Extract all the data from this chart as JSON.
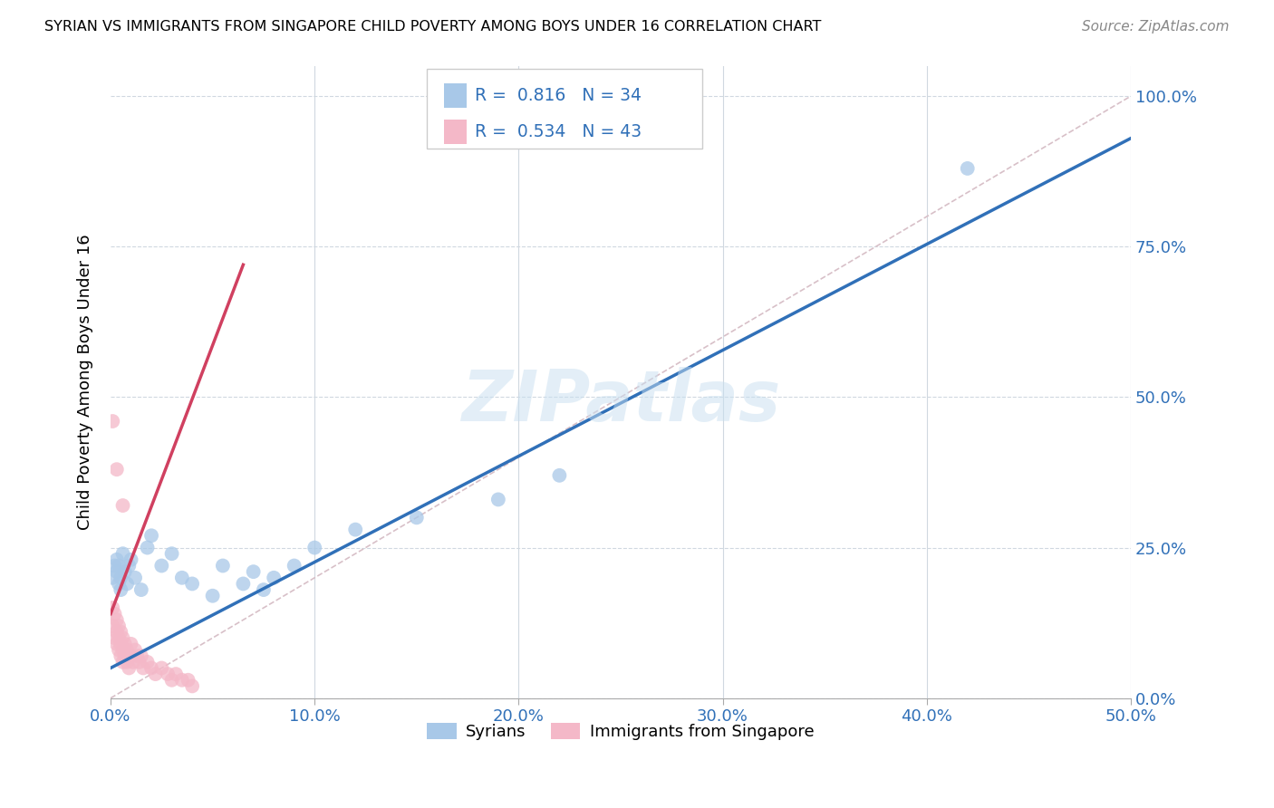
{
  "title": "SYRIAN VS IMMIGRANTS FROM SINGAPORE CHILD POVERTY AMONG BOYS UNDER 16 CORRELATION CHART",
  "source": "Source: ZipAtlas.com",
  "ylabel": "Child Poverty Among Boys Under 16",
  "blue_label": "Syrians",
  "pink_label": "Immigrants from Singapore",
  "blue_R": 0.816,
  "blue_N": 34,
  "pink_R": 0.534,
  "pink_N": 43,
  "blue_color": "#a8c8e8",
  "pink_color": "#f4b8c8",
  "blue_line_color": "#3070b8",
  "pink_line_color": "#d04060",
  "ref_line_color": "#d8c0c8",
  "watermark": "ZIPatlas",
  "xmin": 0.0,
  "xmax": 0.5,
  "ymin": 0.0,
  "ymax": 1.05,
  "blue_x": [
    0.001,
    0.002,
    0.003,
    0.003,
    0.004,
    0.004,
    0.005,
    0.005,
    0.006,
    0.007,
    0.008,
    0.009,
    0.01,
    0.012,
    0.015,
    0.018,
    0.02,
    0.025,
    0.03,
    0.035,
    0.04,
    0.05,
    0.055,
    0.065,
    0.07,
    0.075,
    0.08,
    0.09,
    0.1,
    0.12,
    0.15,
    0.19,
    0.22,
    0.42
  ],
  "blue_y": [
    0.2,
    0.22,
    0.21,
    0.23,
    0.19,
    0.22,
    0.2,
    0.18,
    0.24,
    0.21,
    0.19,
    0.22,
    0.23,
    0.2,
    0.18,
    0.25,
    0.27,
    0.22,
    0.24,
    0.2,
    0.19,
    0.17,
    0.22,
    0.19,
    0.21,
    0.18,
    0.2,
    0.22,
    0.25,
    0.28,
    0.3,
    0.33,
    0.37,
    0.88
  ],
  "pink_x": [
    0.001,
    0.001,
    0.002,
    0.002,
    0.003,
    0.003,
    0.003,
    0.004,
    0.004,
    0.004,
    0.005,
    0.005,
    0.005,
    0.006,
    0.006,
    0.006,
    0.007,
    0.007,
    0.008,
    0.008,
    0.009,
    0.009,
    0.01,
    0.01,
    0.011,
    0.012,
    0.013,
    0.014,
    0.015,
    0.016,
    0.018,
    0.02,
    0.022,
    0.025,
    0.028,
    0.03,
    0.032,
    0.035,
    0.038,
    0.04,
    0.001,
    0.003,
    0.006
  ],
  "pink_y": [
    0.15,
    0.12,
    0.14,
    0.1,
    0.13,
    0.11,
    0.09,
    0.12,
    0.1,
    0.08,
    0.11,
    0.09,
    0.07,
    0.1,
    0.08,
    0.06,
    0.09,
    0.07,
    0.08,
    0.06,
    0.07,
    0.05,
    0.09,
    0.07,
    0.06,
    0.08,
    0.07,
    0.06,
    0.07,
    0.05,
    0.06,
    0.05,
    0.04,
    0.05,
    0.04,
    0.03,
    0.04,
    0.03,
    0.03,
    0.02,
    0.46,
    0.38,
    0.32
  ],
  "blue_line_x": [
    0.0,
    0.5
  ],
  "blue_line_y": [
    0.05,
    0.93
  ],
  "pink_line_x": [
    0.0,
    0.065
  ],
  "pink_line_y": [
    0.14,
    0.72
  ],
  "ref_line_x": [
    0.0,
    0.5
  ],
  "ref_line_y": [
    0.0,
    1.0
  ]
}
